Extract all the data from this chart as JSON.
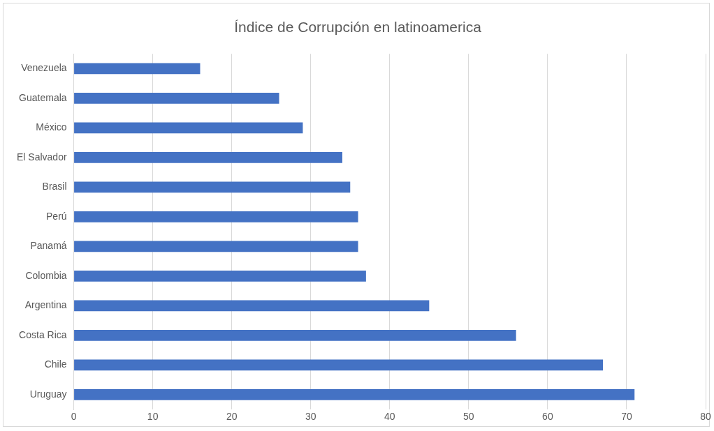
{
  "chart_data": {
    "type": "bar",
    "orientation": "horizontal",
    "title": "Índice de Corrupción en latinoamerica",
    "categories": [
      "Venezuela",
      "Guatemala",
      "México",
      "El Salvador",
      "Brasil",
      "Perú",
      "Panamá",
      "Colombia",
      "Argentina",
      "Costa Rica",
      "Chile",
      "Uruguay"
    ],
    "values": [
      16,
      26,
      29,
      34,
      35,
      36,
      36,
      37,
      45,
      56,
      67,
      71
    ],
    "color": "#4472c4",
    "xlim": [
      0,
      80
    ],
    "xticks": [
      0,
      10,
      20,
      30,
      40,
      50,
      60,
      70,
      80
    ],
    "grid": "x",
    "legend": false
  }
}
